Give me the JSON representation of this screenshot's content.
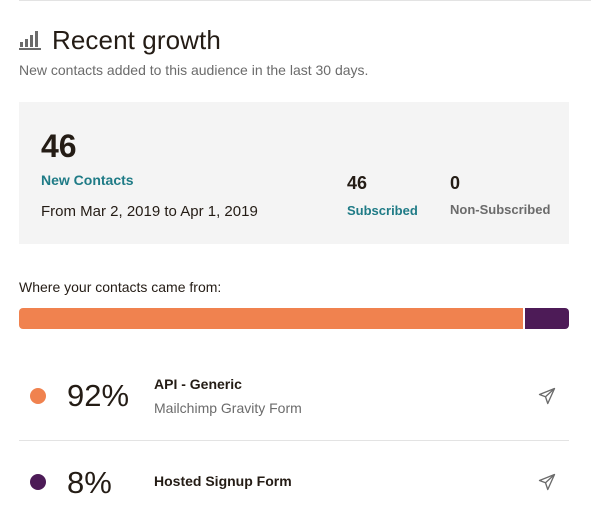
{
  "header": {
    "title": "Recent growth",
    "icon": "bar-chart-icon"
  },
  "subtitle": "New contacts added to this audience in the last 30 days.",
  "stats": {
    "total": "46",
    "total_label": "New Contacts",
    "date_range": "From Mar 2, 2019 to Apr 1, 2019",
    "subscribed_value": "46",
    "subscribed_label": "Subscribed",
    "non_subscribed_value": "0",
    "non_subscribed_label": "Non-Subscribed"
  },
  "sources_heading": "Where your contacts came from:",
  "sources": [
    {
      "percent": "92%",
      "share": 0.92,
      "name": "API - Generic",
      "description": "Mailchimp Gravity Form",
      "color": "#f0824f",
      "icon": "send-icon"
    },
    {
      "percent": "8%",
      "share": 0.08,
      "name": "Hosted Signup Form",
      "description": "",
      "color": "#4d1b57",
      "icon": "send-icon"
    }
  ],
  "colors": {
    "accent_teal": "#1f7b86",
    "panel_bg": "#f4f4f4"
  }
}
